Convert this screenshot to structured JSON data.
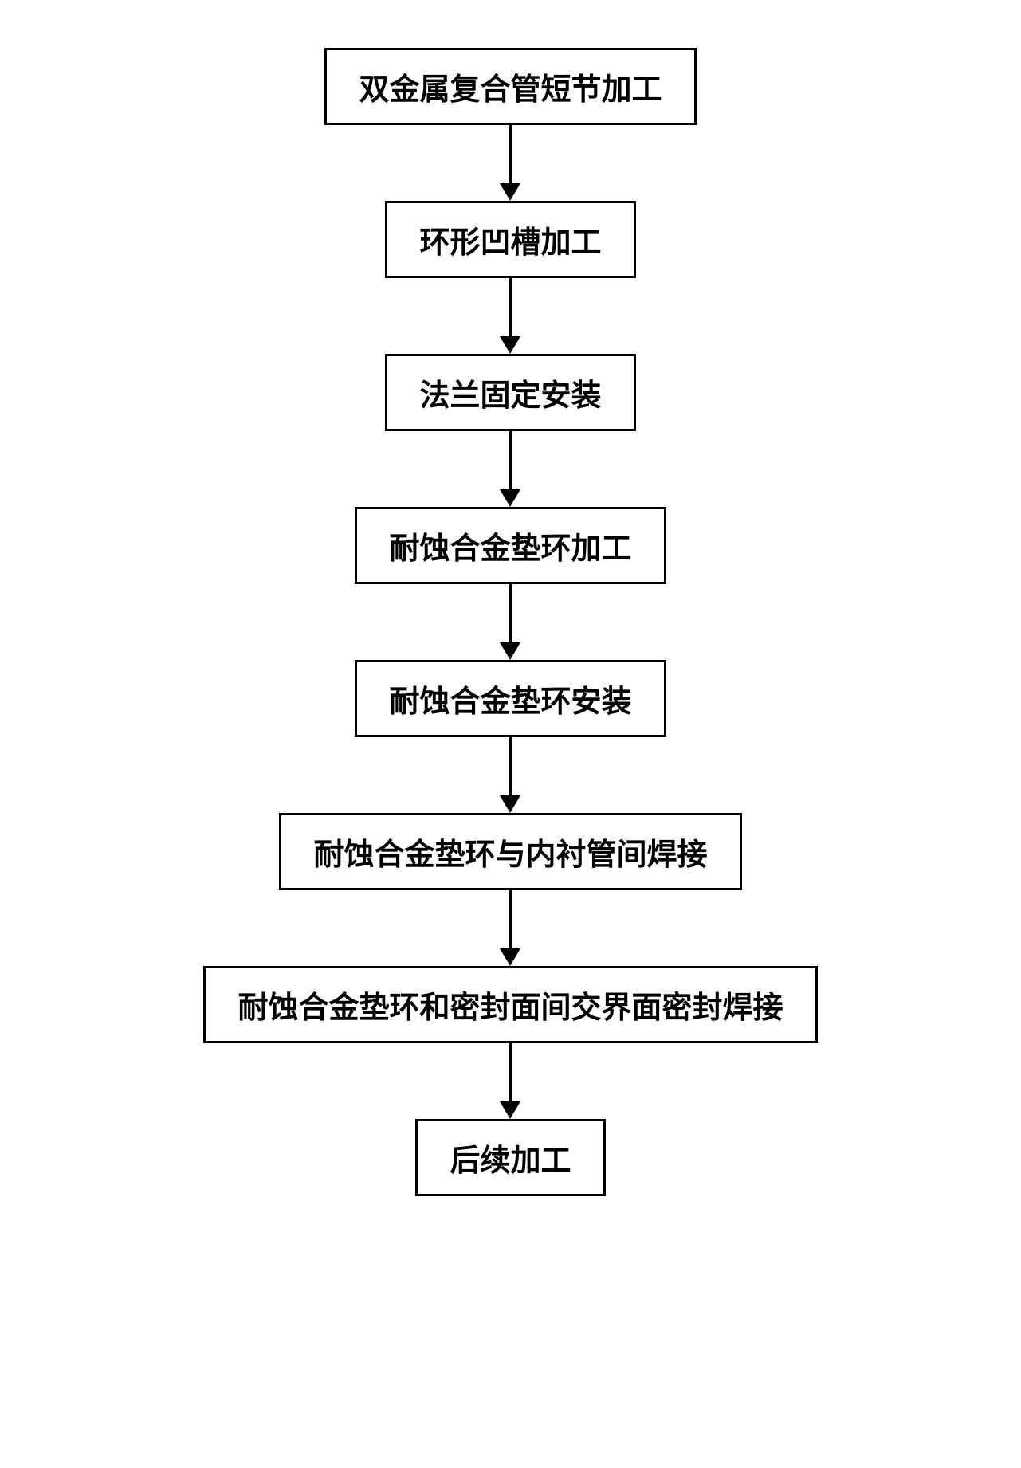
{
  "flowchart": {
    "type": "flowchart",
    "direction": "vertical",
    "background_color": "#ffffff",
    "box_border_color": "#000000",
    "box_border_width": 3,
    "box_background_color": "#ffffff",
    "text_color": "#000000",
    "font_size": 38,
    "font_weight": "bold",
    "font_family": "SimSun",
    "arrow_color": "#000000",
    "arrow_line_width": 3,
    "arrow_head_width": 26,
    "arrow_head_height": 22,
    "arrow_gap_height": 95,
    "box_padding_vertical": 18,
    "box_padding_horizontal": 40,
    "steps": [
      {
        "label": "双金属复合管短节加工"
      },
      {
        "label": "环形凹槽加工"
      },
      {
        "label": "法兰固定安装"
      },
      {
        "label": "耐蚀合金垫环加工"
      },
      {
        "label": "耐蚀合金垫环安装"
      },
      {
        "label": "耐蚀合金垫环与内衬管间焊接"
      },
      {
        "label": "耐蚀合金垫环和密封面间交界面密封焊接"
      },
      {
        "label": "后续加工"
      }
    ]
  }
}
